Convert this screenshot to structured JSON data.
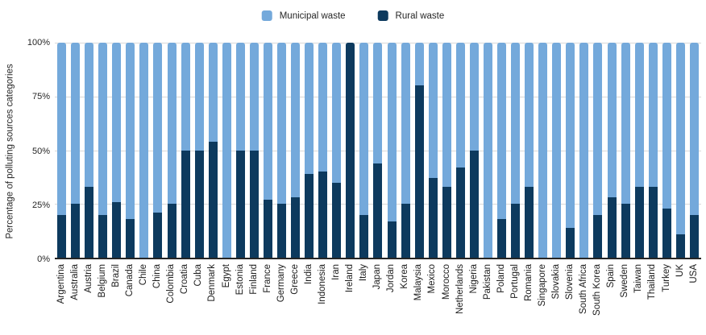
{
  "chart_data": {
    "type": "bar",
    "stacked": true,
    "orientation": "vertical",
    "title": "",
    "ylabel": "Percentage of polluting sources categories",
    "xlabel": "",
    "ylim": [
      0,
      100
    ],
    "yticks": [
      0,
      25,
      50,
      75,
      100
    ],
    "ytick_labels": [
      "0%",
      "25%",
      "50%",
      "75%",
      "100%"
    ],
    "grid": true,
    "legend_position": "top-center",
    "categories": [
      "Argentina",
      "Australia",
      "Austria",
      "Belgium",
      "Brazil",
      "Canada",
      "Chile",
      "China",
      "Colombia",
      "Croatia",
      "Cuba",
      "Denmark",
      "Egypt",
      "Estonia",
      "Finland",
      "France",
      "Germany",
      "Greece",
      "India",
      "Indonesia",
      "Iran",
      "Ireland",
      "Italy",
      "Japan",
      "Jordan",
      "Korea",
      "Malaysia",
      "Mexico",
      "Morocco",
      "Netherlands",
      "Nigeria",
      "Pakistan",
      "Poland",
      "Portugal",
      "Romania",
      "Singapore",
      "Slovakia",
      "Slovenia",
      "South Africa",
      "South Korea",
      "Spain",
      "Sweden",
      "Taiwan",
      "Thailand",
      "Turkey",
      "UK",
      "USA"
    ],
    "series": [
      {
        "name": "Municipal waste",
        "color": "#74a9db",
        "values": [
          80,
          75,
          67,
          80,
          74,
          82,
          100,
          79,
          75,
          50,
          50,
          46,
          100,
          50,
          50,
          73,
          75,
          72,
          61,
          60,
          65,
          0,
          80,
          56,
          83,
          75,
          20,
          63,
          67,
          58,
          50,
          100,
          82,
          75,
          67,
          100,
          100,
          86,
          100,
          80,
          72,
          75,
          67,
          67,
          77,
          89,
          80
        ]
      },
      {
        "name": "Rural waste",
        "color": "#0d3a5e",
        "values": [
          20,
          25,
          33,
          20,
          26,
          18,
          0,
          21,
          25,
          50,
          50,
          54,
          0,
          50,
          50,
          27,
          25,
          28,
          39,
          40,
          35,
          100,
          20,
          44,
          17,
          25,
          80,
          37,
          33,
          42,
          50,
          0,
          18,
          25,
          33,
          0,
          0,
          14,
          0,
          20,
          28,
          25,
          33,
          33,
          23,
          11,
          20
        ]
      }
    ],
    "colors": {
      "gridline": "#d9d9d9",
      "axis_line": "#262626",
      "tick_text": "#262626",
      "label_text": "#1a1a1a"
    }
  }
}
